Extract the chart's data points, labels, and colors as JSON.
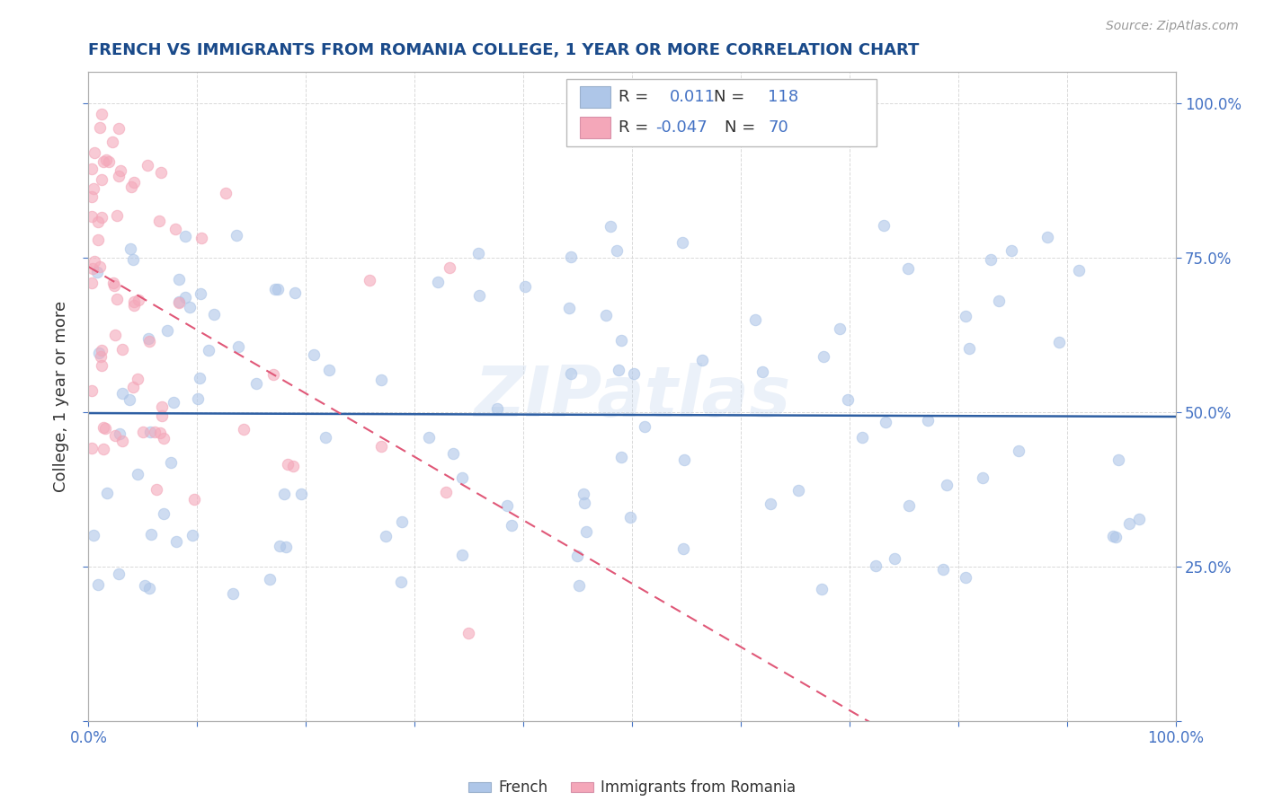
{
  "title": "FRENCH VS IMMIGRANTS FROM ROMANIA COLLEGE, 1 YEAR OR MORE CORRELATION CHART",
  "source_text": "Source: ZipAtlas.com",
  "ylabel": "College, 1 year or more",
  "xlim": [
    0.0,
    1.0
  ],
  "ylim": [
    0.0,
    1.05
  ],
  "legend_r1": "0.011",
  "legend_n1": "118",
  "legend_r2": "-0.047",
  "legend_n2": "70",
  "color_blue": "#aec6e8",
  "color_pink": "#f4a7b9",
  "color_line_blue": "#2e5fa3",
  "color_line_pink": "#e05878",
  "watermark": "ZIPatlas",
  "background_color": "#ffffff",
  "grid_color": "#d0d0d0",
  "title_color": "#1a4a8a",
  "axis_label_color": "#333333",
  "tick_color_blue": "#4472c4",
  "source_color": "#999999",
  "legend_text_color": "#333333",
  "legend_value_color": "#4472c4"
}
